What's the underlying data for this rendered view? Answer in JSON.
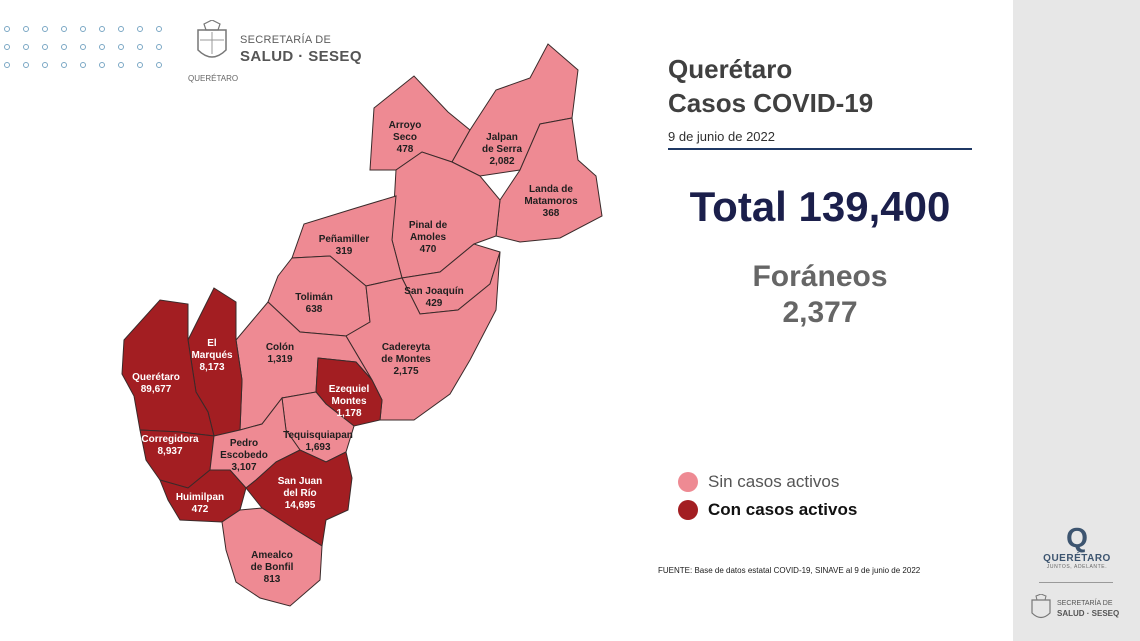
{
  "header": {
    "org_line1": "SECRETARÍA DE",
    "org_line2": "SALUD · SESEQ",
    "org_sub": "QUERÉTARO"
  },
  "title": {
    "line1": "Querétaro",
    "line2": "Casos COVID-19"
  },
  "date": "9 de junio de 2022",
  "total_text": "Total 139,400",
  "foraneos": {
    "label": "Foráneos",
    "value": "2,377"
  },
  "legend": [
    {
      "label": "Sin casos activos",
      "color": "#ee8a93"
    },
    {
      "label": "Con casos activos",
      "color": "#a31e22"
    }
  ],
  "source": "FUENTE: Base de datos estatal  COVID-19,  SINAVE  al 9 de junio de 2022",
  "colors": {
    "no_active": "#ee8a93",
    "active": "#a31e22",
    "border": "#3a2a2a"
  },
  "municipalities": [
    {
      "id": "arroyo-seco",
      "name_lines": [
        "Arroyo",
        "Seco"
      ],
      "count": "478",
      "status": "no_active"
    },
    {
      "id": "jalpan-de-serra",
      "name_lines": [
        "Jalpan",
        "de Serra"
      ],
      "count": "2,082",
      "status": "no_active"
    },
    {
      "id": "landa-de-matamoros",
      "name_lines": [
        "Landa de",
        "Matamoros"
      ],
      "count": "368",
      "status": "no_active"
    },
    {
      "id": "pinal-de-amoles",
      "name_lines": [
        "Pinal de",
        "Amoles"
      ],
      "count": "470",
      "status": "no_active"
    },
    {
      "id": "penamiller",
      "name_lines": [
        "Peñamiller"
      ],
      "count": "319",
      "status": "no_active"
    },
    {
      "id": "san-joaquin",
      "name_lines": [
        "San Joaquín"
      ],
      "count": "429",
      "status": "no_active"
    },
    {
      "id": "toliman",
      "name_lines": [
        "Tolimán"
      ],
      "count": "638",
      "status": "no_active"
    },
    {
      "id": "cadereyta-de-montes",
      "name_lines": [
        "Cadereyta",
        "de Montes"
      ],
      "count": "2,175",
      "status": "no_active"
    },
    {
      "id": "colon",
      "name_lines": [
        "Colón"
      ],
      "count": "1,319",
      "status": "no_active"
    },
    {
      "id": "el-marques",
      "name_lines": [
        "El",
        "Marqués"
      ],
      "count": "8,173",
      "status": "active"
    },
    {
      "id": "queretaro",
      "name_lines": [
        "Querétaro"
      ],
      "count": "89,677",
      "status": "active"
    },
    {
      "id": "ezequiel-montes",
      "name_lines": [
        "Ezequiel",
        "Montes"
      ],
      "count": "1,178",
      "status": "active"
    },
    {
      "id": "tequisquiapan",
      "name_lines": [
        "Tequisquiapan"
      ],
      "count": "1,693",
      "status": "no_active"
    },
    {
      "id": "corregidora",
      "name_lines": [
        "Corregidora"
      ],
      "count": "8,937",
      "status": "active"
    },
    {
      "id": "pedro-escobedo",
      "name_lines": [
        "Pedro",
        "Escobedo"
      ],
      "count": "3,107",
      "status": "no_active"
    },
    {
      "id": "san-juan-del-rio",
      "name_lines": [
        "San Juan",
        "del Río"
      ],
      "count": "14,695",
      "status": "active"
    },
    {
      "id": "huimilpan",
      "name_lines": [
        "Huimilpan"
      ],
      "count": "472",
      "status": "active"
    },
    {
      "id": "amealco-de-bonfil",
      "name_lines": [
        "Amealco",
        "de Bonfil"
      ],
      "count": "813",
      "status": "no_active"
    }
  ],
  "brand": {
    "q_letter": "Q",
    "name": "QUERÉTARO",
    "tagline": "JUNTOS, ADELANTE.",
    "small_line1": "SECRETARÍA DE",
    "small_line2": "SALUD · SESEQ"
  }
}
